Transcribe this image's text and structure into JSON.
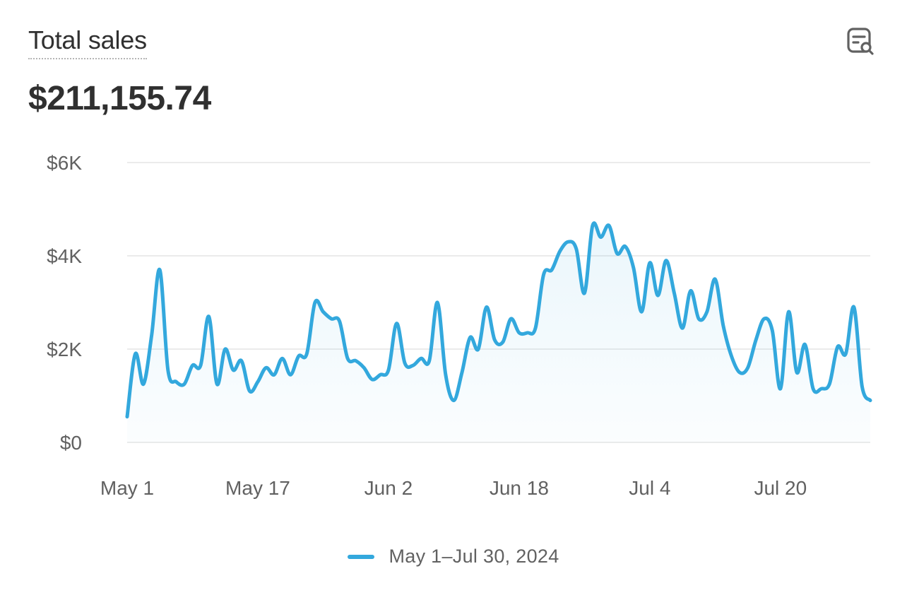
{
  "header": {
    "title": "Total sales",
    "total": "$211,155.74",
    "icon": "report-search-icon"
  },
  "legend": {
    "label": "May 1–Jul 30, 2024"
  },
  "colors": {
    "line": "#33a8dd",
    "grid": "#ebebeb",
    "text": "#303030",
    "muted": "#616161"
  },
  "chart_data": {
    "type": "area",
    "ylim": [
      0,
      6000
    ],
    "yticks": [
      {
        "value": 0,
        "label": "$0"
      },
      {
        "value": 2000,
        "label": "$2K"
      },
      {
        "value": 4000,
        "label": "$4K"
      },
      {
        "value": 6000,
        "label": "$6K"
      }
    ],
    "xticks": [
      {
        "index": 0,
        "label": "May 1"
      },
      {
        "index": 16,
        "label": "May 17"
      },
      {
        "index": 32,
        "label": "Jun 2"
      },
      {
        "index": 48,
        "label": "Jun 18"
      },
      {
        "index": 64,
        "label": "Jul 4"
      },
      {
        "index": 80,
        "label": "Jul 20"
      }
    ],
    "grid": true,
    "legend_position": "bottom-center",
    "series": [
      {
        "name": "May 1–Jul 30, 2024",
        "values": [
          550,
          1900,
          1250,
          2300,
          3700,
          1550,
          1300,
          1250,
          1650,
          1650,
          2700,
          1250,
          2000,
          1550,
          1750,
          1100,
          1300,
          1600,
          1450,
          1800,
          1450,
          1850,
          1900,
          3000,
          2800,
          2650,
          2600,
          1800,
          1750,
          1600,
          1350,
          1450,
          1550,
          2550,
          1700,
          1650,
          1800,
          1750,
          3000,
          1450,
          900,
          1500,
          2250,
          2000,
          2900,
          2200,
          2150,
          2650,
          2350,
          2350,
          2450,
          3600,
          3700,
          4100,
          4300,
          4150,
          3200,
          4650,
          4400,
          4650,
          4050,
          4200,
          3750,
          2800,
          3850,
          3150,
          3900,
          3200,
          2450,
          3250,
          2650,
          2800,
          3500,
          2500,
          1850,
          1500,
          1600,
          2200,
          2650,
          2400,
          1150,
          2800,
          1500,
          2100,
          1150,
          1150,
          1250,
          2050,
          1900,
          2900,
          1200,
          900
        ]
      }
    ]
  }
}
